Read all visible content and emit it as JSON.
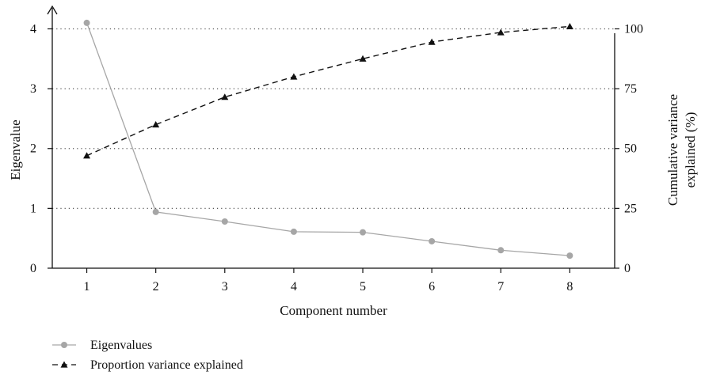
{
  "chart_data": {
    "type": "line",
    "title": "",
    "xlabel": "Component number",
    "ylabel_left": "Eigenvalue",
    "ylabel_right_lines": [
      "Cumulative variance",
      "explained (%)"
    ],
    "x": [
      1,
      2,
      3,
      4,
      5,
      6,
      7,
      8
    ],
    "x_ticks": [
      "1",
      "2",
      "3",
      "4",
      "5",
      "6",
      "7",
      "8"
    ],
    "xlim": [
      0.5,
      8.65
    ],
    "ylim_left": [
      0,
      4.35
    ],
    "ylim_right": [
      0,
      108.75
    ],
    "y_ticks_left": [
      0,
      1,
      2,
      3,
      4
    ],
    "y_ticks_right": [
      0,
      25,
      50,
      75,
      100
    ],
    "grid": "horizontal dotted at major ticks",
    "legend_position": "bottom-left",
    "series": [
      {
        "name": "Eigenvalues",
        "axis": "left",
        "style": "solid",
        "marker": "circle",
        "color": "#a6a6a6",
        "values": [
          4.1,
          0.94,
          0.78,
          0.61,
          0.6,
          0.45,
          0.3,
          0.21
        ]
      },
      {
        "name": "Proportion variance explained",
        "axis": "right",
        "style": "dashed",
        "marker": "triangle",
        "color": "#111111",
        "values": [
          47,
          60,
          71.5,
          80,
          87.5,
          94.5,
          98.5,
          101
        ]
      }
    ]
  }
}
